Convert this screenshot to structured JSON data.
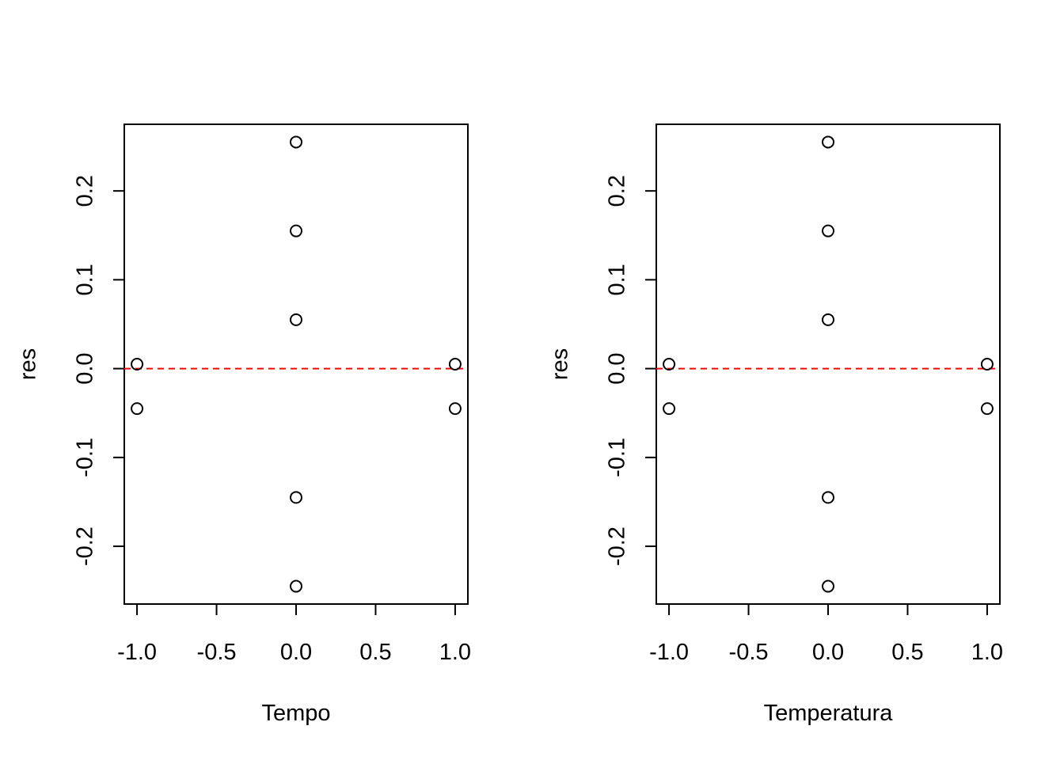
{
  "chart_data": [
    {
      "type": "scatter",
      "title": "",
      "xlabel": "Tempo",
      "ylabel": "res",
      "xlim": [
        -1.08,
        1.08
      ],
      "ylim": [
        -0.265,
        0.275
      ],
      "x_ticks": [
        -1.0,
        -0.5,
        0.0,
        0.5,
        1.0
      ],
      "x_tick_labels": [
        "-1.0",
        "-0.5",
        "0.0",
        "0.5",
        "1.0"
      ],
      "y_ticks": [
        -0.2,
        -0.1,
        0.0,
        0.1,
        0.2
      ],
      "y_tick_labels": [
        "-0.2",
        "-0.1",
        "0.0",
        "0.1",
        "0.2"
      ],
      "grid": false,
      "points": [
        {
          "x": -1.0,
          "y": 0.005
        },
        {
          "x": -1.0,
          "y": -0.045
        },
        {
          "x": 1.0,
          "y": 0.005
        },
        {
          "x": 1.0,
          "y": -0.045
        },
        {
          "x": 0.0,
          "y": 0.255
        },
        {
          "x": 0.0,
          "y": 0.155
        },
        {
          "x": 0.0,
          "y": 0.055
        },
        {
          "x": 0.0,
          "y": -0.145
        },
        {
          "x": 0.0,
          "y": -0.245
        }
      ],
      "reference_line": {
        "y": 0.0,
        "style": "dashed",
        "color": "#ff0000"
      }
    },
    {
      "type": "scatter",
      "title": "",
      "xlabel": "Temperatura",
      "ylabel": "res",
      "xlim": [
        -1.08,
        1.08
      ],
      "ylim": [
        -0.265,
        0.275
      ],
      "x_ticks": [
        -1.0,
        -0.5,
        0.0,
        0.5,
        1.0
      ],
      "x_tick_labels": [
        "-1.0",
        "-0.5",
        "0.0",
        "0.5",
        "1.0"
      ],
      "y_ticks": [
        -0.2,
        -0.1,
        0.0,
        0.1,
        0.2
      ],
      "y_tick_labels": [
        "-0.2",
        "-0.1",
        "0.0",
        "0.1",
        "0.2"
      ],
      "grid": false,
      "points": [
        {
          "x": -1.0,
          "y": 0.005
        },
        {
          "x": -1.0,
          "y": -0.045
        },
        {
          "x": 1.0,
          "y": 0.005
        },
        {
          "x": 1.0,
          "y": -0.045
        },
        {
          "x": 0.0,
          "y": 0.255
        },
        {
          "x": 0.0,
          "y": 0.155
        },
        {
          "x": 0.0,
          "y": 0.055
        },
        {
          "x": 0.0,
          "y": -0.145
        },
        {
          "x": 0.0,
          "y": -0.245
        }
      ],
      "reference_line": {
        "y": 0.0,
        "style": "dashed",
        "color": "#ff0000"
      }
    }
  ]
}
